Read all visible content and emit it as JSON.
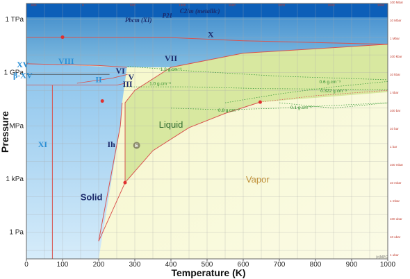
{
  "chart_data": {
    "type": "phase-diagram",
    "title": "",
    "xlabel": "Temperature (K)",
    "ylabel": "Pressure",
    "xlim": [
      0,
      1000
    ],
    "x_ticks": [
      "0",
      "100",
      "200",
      "300",
      "400",
      "500",
      "600",
      "700",
      "800",
      "900",
      "1000"
    ],
    "y_ticks_left": [
      {
        "label": "1 TPa",
        "log10_pa": 12
      },
      {
        "label": "1 GPa",
        "log10_pa": 9
      },
      {
        "label": "MPa",
        "log10_pa": 6
      },
      {
        "label": "1 kPa",
        "log10_pa": 3
      },
      {
        "label": "1 Pa",
        "log10_pa": 0
      }
    ],
    "y_ticks_right": [
      "1 ubar",
      "10 ubar",
      "100 ubar",
      "1 mbar",
      "10 mbar",
      "100 mbar",
      "1 bar",
      "10 bar",
      "100 bar",
      "1 kbar",
      "10 kbar",
      "100 kbar",
      "1 Mbar",
      "10 Mbar",
      "100 Mbar"
    ],
    "top_tick_labels": [
      "-500",
      "0",
      "500",
      "1000",
      "1500",
      "2000",
      "2500",
      "3000"
    ],
    "phases": [
      {
        "name": "C2/m (metallic)",
        "T": 480,
        "log10_pa": 12.35
      },
      {
        "name": "P21",
        "T": 390,
        "log10_pa": 12.1
      },
      {
        "name": "Pbcm (XI)",
        "T": 310,
        "log10_pa": 11.85
      },
      {
        "name": "X",
        "T": 510,
        "log10_pa": 11.0
      },
      {
        "name": "VII",
        "T": 400,
        "log10_pa": 9.65
      },
      {
        "name": "VIII",
        "T": 110,
        "log10_pa": 9.5
      },
      {
        "name": "VI",
        "T": 260,
        "log10_pa": 8.95
      },
      {
        "name": "V",
        "T": 290,
        "log10_pa": 8.6
      },
      {
        "name": "II",
        "T": 200,
        "log10_pa": 8.45
      },
      {
        "name": "III",
        "T": 280,
        "log10_pa": 8.2
      },
      {
        "name": "Ih",
        "T": 235,
        "log10_pa": 4.8
      },
      {
        "name": "XI",
        "T": 45,
        "log10_pa": 4.8
      },
      {
        "name": "XV",
        "T": -10,
        "log10_pa": 9.3
      },
      {
        "name": "β-XV",
        "T": -10,
        "log10_pa": 8.7
      }
    ],
    "regions": [
      {
        "name": "Solid",
        "T": 180,
        "log10_pa": 1.8
      },
      {
        "name": "Liquid",
        "T": 400,
        "log10_pa": 5.9
      },
      {
        "name": "Vapor",
        "T": 640,
        "log10_pa": 2.8
      }
    ],
    "isochores": [
      {
        "label": "1.2 g.cm⁻³",
        "T": 400,
        "log10_pa": 9.1
      },
      {
        "label": "1.0 g.cm⁻³",
        "T": 370,
        "log10_pa": 8.3
      },
      {
        "label": "0.8 g.cm⁻³",
        "T": 560,
        "log10_pa": 6.8
      },
      {
        "label": "0.6 g.cm⁻³",
        "T": 840,
        "log10_pa": 8.4
      },
      {
        "label": "0.322 g.cm⁻³",
        "T": 850,
        "log10_pa": 7.9
      },
      {
        "label": "0.1 g.cm⁻³",
        "T": 760,
        "log10_pa": 6.95
      }
    ],
    "special_points": [
      {
        "name": "critical-point",
        "T": 647,
        "log10_pa": 7.34
      },
      {
        "name": "triple-point",
        "T": 273,
        "log10_pa": 2.8
      },
      {
        "name": "E",
        "T": 305,
        "log10_pa": 4.9
      },
      {
        "name": "ice-point",
        "T": 210,
        "log10_pa": 7.4
      },
      {
        "name": "VIII-VII-X",
        "T": 100,
        "log10_pa": 11.0
      }
    ],
    "curves": {
      "vapor_line": [
        [
          200,
          -0.5
        ],
        [
          273,
          2.8
        ],
        [
          350,
          4.6
        ],
        [
          450,
          5.9
        ],
        [
          550,
          6.7
        ],
        [
          647,
          7.34
        ]
      ],
      "melting_line": [
        [
          273,
          2.8
        ],
        [
          273,
          7.3
        ],
        [
          300,
          8.0
        ],
        [
          400,
          9.3
        ],
        [
          600,
          10.1
        ],
        [
          1000,
          10.6
        ]
      ],
      "ice_ih_left": [
        [
          200,
          -0.5
        ],
        [
          260,
          6.0
        ],
        [
          265,
          7.3
        ]
      ],
      "VII_VIII": [
        [
          0,
          9.5
        ],
        [
          200,
          9.4
        ],
        [
          278,
          9.3
        ]
      ],
      "X_boundary": [
        [
          0,
          11.0
        ],
        [
          400,
          10.98
        ],
        [
          600,
          10.8
        ],
        [
          1000,
          10.6
        ]
      ],
      "XI_Ih": [
        [
          72,
          -1.5
        ],
        [
          72,
          8.3
        ]
      ],
      "isochore_1_2": [
        [
          280,
          9.35
        ],
        [
          450,
          9.1
        ],
        [
          700,
          8.8
        ],
        [
          1000,
          8.6
        ]
      ],
      "isochore_1_0": [
        [
          270,
          8.2
        ],
        [
          450,
          8.2
        ],
        [
          650,
          8.1
        ],
        [
          1000,
          8.05
        ]
      ],
      "isochore_0_8": [
        [
          400,
          7.0
        ],
        [
          550,
          6.9
        ],
        [
          700,
          7.0
        ],
        [
          1000,
          7.3
        ]
      ],
      "isochore_0_6": [
        [
          550,
          7.3
        ],
        [
          700,
          7.8
        ],
        [
          850,
          8.2
        ],
        [
          1000,
          8.5
        ]
      ],
      "isochore_0_322": [
        [
          647,
          7.34
        ],
        [
          800,
          7.7
        ],
        [
          1000,
          8.0
        ]
      ],
      "isochore_0_1": [
        [
          700,
          7.3
        ],
        [
          850,
          7.0
        ],
        [
          1000,
          7.3
        ]
      ]
    },
    "credit": "(c)MPC"
  }
}
